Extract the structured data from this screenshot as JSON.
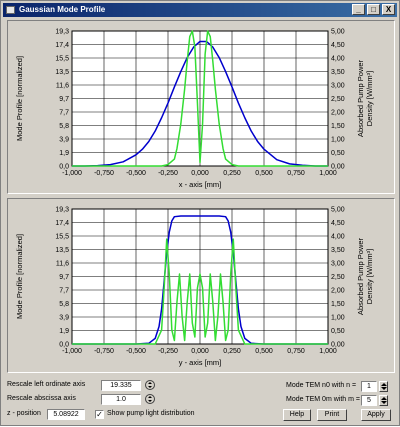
{
  "window": {
    "title": "Gaussian Mode Profile",
    "buttons": {
      "minimize": "_",
      "maximize": "□",
      "close": "X"
    }
  },
  "chart_data": [
    {
      "type": "line",
      "xlabel": "x - axis [mm]",
      "ylabel": "Mode Profile [normalized]",
      "y2label": "Absorbed Pump Power Density [W/mm³]",
      "xlim": [
        -1.0,
        1.0
      ],
      "ylim": [
        0.0,
        19.3
      ],
      "y2lim": [
        0.0,
        5.0
      ],
      "x_ticks": [
        "-1,000",
        "-0,750",
        "-0,500",
        "-0,250",
        "0,000",
        "0,250",
        "0,500",
        "0,750",
        "1,000"
      ],
      "y_ticks": [
        "0,0",
        "1,9",
        "3,9",
        "5,8",
        "7,7",
        "9,7",
        "11,6",
        "13,5",
        "15,5",
        "17,4",
        "19,3"
      ],
      "y2_ticks": [
        "0,00",
        "0,50",
        "1,00",
        "1,50",
        "2,00",
        "2,50",
        "3,00",
        "3,50",
        "4,00",
        "4,50",
        "5,00"
      ],
      "grid": true,
      "series": [
        {
          "axis": "left",
          "color": "#0000cc",
          "x": [
            -1.0,
            -0.9,
            -0.8,
            -0.7,
            -0.6,
            -0.5,
            -0.45,
            -0.4,
            -0.35,
            -0.3,
            -0.25,
            -0.2,
            -0.15,
            -0.1,
            -0.05,
            0.0,
            0.05,
            0.1,
            0.15,
            0.2,
            0.25,
            0.3,
            0.35,
            0.4,
            0.45,
            0.5,
            0.6,
            0.7,
            0.8,
            0.9,
            1.0
          ],
          "y": [
            0.0,
            0.0,
            0.05,
            0.2,
            0.6,
            1.6,
            2.4,
            3.5,
            5.0,
            6.9,
            9.0,
            11.3,
            13.5,
            15.5,
            17.0,
            17.8,
            17.8,
            17.0,
            15.5,
            13.5,
            11.3,
            9.0,
            6.9,
            5.0,
            3.5,
            2.4,
            0.9,
            0.3,
            0.1,
            0.0,
            0.0
          ]
        },
        {
          "axis": "left",
          "color": "#33dd33",
          "x": [
            -1.0,
            -0.4,
            -0.3,
            -0.25,
            -0.2,
            -0.18,
            -0.15,
            -0.12,
            -0.1,
            -0.08,
            -0.06,
            -0.04,
            -0.02,
            0.0,
            0.02,
            0.04,
            0.06,
            0.08,
            0.1,
            0.12,
            0.15,
            0.18,
            0.2,
            0.25,
            0.3,
            0.4,
            1.0
          ],
          "y": [
            0.0,
            0.0,
            0.0,
            0.2,
            1.0,
            2.5,
            6.0,
            11.0,
            15.0,
            18.5,
            19.3,
            17.0,
            9.0,
            0.5,
            6.0,
            16.0,
            19.3,
            18.5,
            15.0,
            11.0,
            6.0,
            2.5,
            1.0,
            0.2,
            0.0,
            0.0,
            0.0
          ]
        }
      ]
    },
    {
      "type": "line",
      "xlabel": "y - axis [mm]",
      "ylabel": "Mode Profile [normalized]",
      "y2label": "Absorbed Pump Power Density [W/mm³]",
      "xlim": [
        -1.0,
        1.0
      ],
      "ylim": [
        0.0,
        19.3
      ],
      "y2lim": [
        0.0,
        5.0
      ],
      "x_ticks": [
        "-1,000",
        "-0,750",
        "-0,500",
        "-0,250",
        "0,000",
        "0,250",
        "0,500",
        "0,750",
        "1,000"
      ],
      "y_ticks": [
        "0,0",
        "1,9",
        "3,9",
        "5,8",
        "7,7",
        "9,7",
        "11,6",
        "13,5",
        "15,5",
        "17,4",
        "19,3"
      ],
      "y2_ticks": [
        "0,00",
        "0,50",
        "1,00",
        "1,50",
        "2,00",
        "2,50",
        "3,00",
        "3,50",
        "4,00",
        "4,50",
        "5,00"
      ],
      "grid": true,
      "series": [
        {
          "axis": "left",
          "color": "#0000cc",
          "x": [
            -1.0,
            -0.5,
            -0.4,
            -0.35,
            -0.32,
            -0.3,
            -0.28,
            -0.26,
            -0.24,
            -0.22,
            -0.2,
            -0.15,
            -0.1,
            0.0,
            0.1,
            0.15,
            0.2,
            0.22,
            0.24,
            0.26,
            0.28,
            0.3,
            0.32,
            0.35,
            0.4,
            0.5,
            1.0
          ],
          "y": [
            0.0,
            0.0,
            0.1,
            0.8,
            2.5,
            5.0,
            9.0,
            13.0,
            16.0,
            17.6,
            18.2,
            18.3,
            18.3,
            18.3,
            18.3,
            18.3,
            18.2,
            17.6,
            16.0,
            13.0,
            9.0,
            5.0,
            2.5,
            0.8,
            0.1,
            0.0,
            0.0
          ]
        },
        {
          "axis": "left",
          "color": "#33dd33",
          "x": [
            -1.0,
            -0.35,
            -0.3,
            -0.28,
            -0.26,
            -0.24,
            -0.22,
            -0.2,
            -0.18,
            -0.16,
            -0.14,
            -0.12,
            -0.1,
            -0.08,
            -0.06,
            -0.04,
            -0.02,
            0.0,
            0.02,
            0.04,
            0.06,
            0.08,
            0.1,
            0.12,
            0.14,
            0.16,
            0.18,
            0.2,
            0.22,
            0.24,
            0.26,
            0.28,
            0.3,
            0.35,
            1.0
          ],
          "y": [
            0.0,
            0.0,
            2.0,
            8.0,
            15.0,
            10.0,
            2.0,
            0.5,
            6.0,
            10.0,
            4.0,
            0.5,
            6.0,
            10.0,
            3.0,
            1.0,
            8.0,
            10.0,
            8.0,
            1.0,
            3.0,
            10.0,
            6.0,
            0.5,
            4.0,
            10.0,
            6.0,
            0.5,
            2.0,
            10.0,
            15.0,
            8.0,
            2.0,
            0.0,
            0.0
          ]
        }
      ]
    }
  ],
  "controls": {
    "rescale_ordinate_label": "Rescale left ordinate axis",
    "rescale_ordinate_value": "19.335",
    "rescale_abscissa_label": "Rescale abscissa axis",
    "rescale_abscissa_value": "1.0",
    "z_position_label": "z - position",
    "z_position_value": "5.08922",
    "show_pump_label": "Show pump light distribution",
    "show_pump_checked": "✓",
    "mode_n0_label": "Mode TEM n0 with n =",
    "mode_n0_value": "1",
    "mode_0m_label": "Mode TEM 0m with m =",
    "mode_0m_value": "5",
    "help_label": "Help",
    "print_label": "Print",
    "apply_label": "Apply"
  }
}
